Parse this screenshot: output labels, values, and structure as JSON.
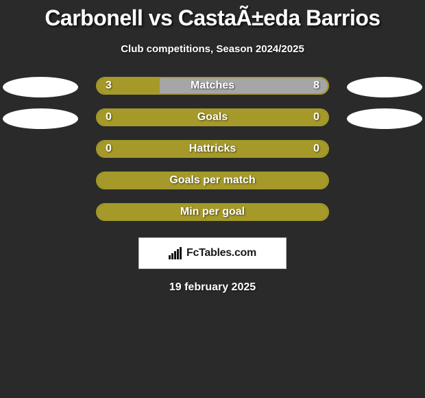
{
  "title": "Carbonell vs CastaÃ±eda Barrios",
  "subtitle": "Club competitions, Season 2024/2025",
  "date": "19 february 2025",
  "brand": "FcTables.com",
  "colors": {
    "olive": "#a59a29",
    "gray_bar": "#a6a6a6",
    "white": "#ffffff",
    "background": "#2a2a2a"
  },
  "rows": [
    {
      "name": "matches",
      "label": "Matches",
      "left_value": "3",
      "right_value": "8",
      "left_pct": 27,
      "right_pct": 73,
      "left_color": "#a59a29",
      "right_color": "#a6a6a6",
      "border_color": "#a59a29",
      "show_ovals": true,
      "show_values": true
    },
    {
      "name": "goals",
      "label": "Goals",
      "left_value": "0",
      "right_value": "0",
      "left_pct": 50,
      "right_pct": 50,
      "left_color": "#a59a29",
      "right_color": "#a59a29",
      "border_color": "#a59a29",
      "show_ovals": true,
      "show_values": true
    },
    {
      "name": "hattricks",
      "label": "Hattricks",
      "left_value": "0",
      "right_value": "0",
      "left_pct": 50,
      "right_pct": 50,
      "left_color": "#a59a29",
      "right_color": "#a59a29",
      "border_color": "#a59a29",
      "show_ovals": false,
      "show_values": true
    },
    {
      "name": "goals-per-match",
      "label": "Goals per match",
      "left_value": "",
      "right_value": "",
      "left_pct": 50,
      "right_pct": 50,
      "left_color": "#a59a29",
      "right_color": "#a59a29",
      "border_color": "#a59a29",
      "show_ovals": false,
      "show_values": false
    },
    {
      "name": "min-per-goal",
      "label": "Min per goal",
      "left_value": "",
      "right_value": "",
      "left_pct": 50,
      "right_pct": 50,
      "left_color": "#a59a29",
      "right_color": "#a59a29",
      "border_color": "#a59a29",
      "show_ovals": false,
      "show_values": false
    }
  ]
}
